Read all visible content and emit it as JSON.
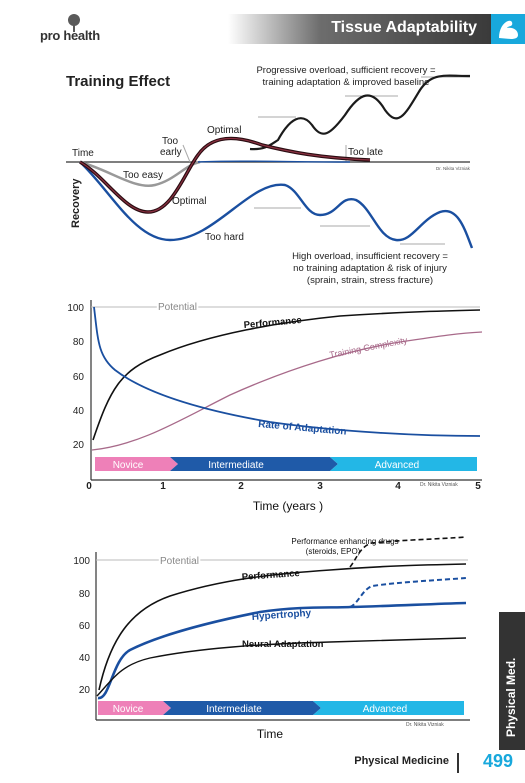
{
  "header": {
    "logo": "pro health",
    "title": "Tissue Adaptability",
    "icon": "flexed-arm-icon"
  },
  "diagram1": {
    "title": "Training Effect",
    "labels": {
      "progressive_line1": "Progressive overload, sufficient recovery =",
      "progressive_line2": "training adaptation & improved baseline",
      "time": "Time",
      "too_early_line1": "Too",
      "too_early_line2": "early",
      "optimal_top": "Optimal",
      "too_late": "Too late",
      "too_easy": "Too easy",
      "optimal_bottom": "Optimal",
      "too_hard": "Too hard",
      "recovery": "Recovery",
      "high_line1": "High overload, insufficient recovery =",
      "high_line2": "no training adaptation & risk of injury",
      "high_line3": "(sprain, strain, stress fracture)",
      "credit": "Dr. Nikita Vizniak"
    }
  },
  "diagram2": {
    "potential": "Potential",
    "performance": "Performance",
    "training_complexity": "Training Complexity",
    "rate_of_adaptation": "Rate of Adaptation",
    "y_ticks": [
      "100",
      "80",
      "60",
      "40",
      "20"
    ],
    "x_ticks": [
      "0",
      "1",
      "2",
      "3",
      "4",
      "5"
    ],
    "xlabel": "Time (years )",
    "stages": [
      "Novice",
      "Intermediate",
      "Advanced"
    ],
    "credit": "Dr. Nikita Vizniak"
  },
  "diagram3": {
    "potential": "Potential",
    "drugs_line1": "Performance enhancing drugs",
    "drugs_line2": "(steroids, EPO)",
    "performance": "Performance",
    "hypertrophy": "Hypertrophy",
    "neural_adaptation": "Neural Adaptation",
    "y_ticks": [
      "100",
      "80",
      "60",
      "40",
      "20"
    ],
    "xlabel": "Time",
    "stages": [
      "Novice",
      "Intermediate",
      "Advanced"
    ],
    "credit": "Dr. Nikita Vizniak"
  },
  "sidebar": {
    "tab_label": "Physical Med."
  },
  "footer": {
    "section": "Physical Medicine",
    "page": "499"
  },
  "colors": {
    "accent_blue": "#18a8dc",
    "curve_blue": "#1a4fa0",
    "novice_pink": "#ee80b8",
    "intermediate_blue": "#1f5aa8",
    "advanced_cyan": "#23b7e6",
    "complexity_mauve": "#a86a8a"
  }
}
